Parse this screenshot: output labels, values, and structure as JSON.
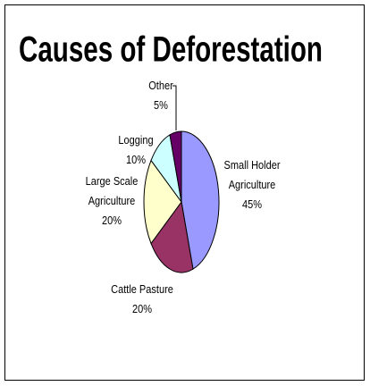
{
  "chart_data": {
    "type": "pie",
    "title": "Causes of Deforestation",
    "categories": [
      "Small Holder Agriculture",
      "Cattle Pasture",
      "Large Scale Agriculture",
      "Logging",
      "Other"
    ],
    "values": [
      45,
      20,
      20,
      10,
      5
    ],
    "value_labels": [
      "45%",
      "20%",
      "20%",
      "10%",
      "5%"
    ],
    "colors": [
      "#9999ff",
      "#993366",
      "#ffffcc",
      "#ccffff",
      "#660066"
    ]
  }
}
